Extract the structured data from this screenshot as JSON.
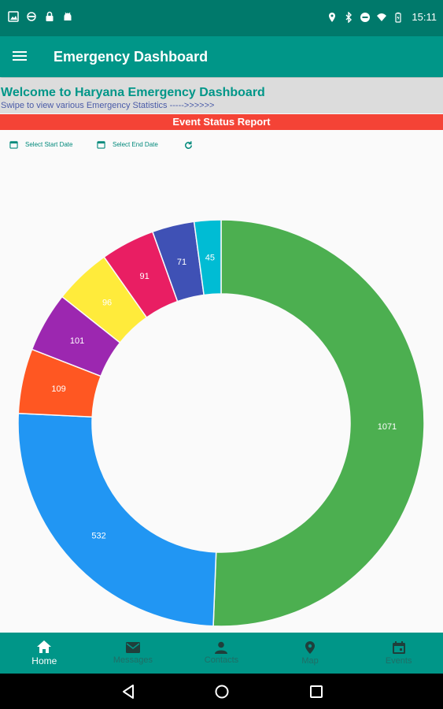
{
  "status_bar": {
    "time": "15:11",
    "left_icons": [
      "image-icon",
      "sync-icon",
      "lock-icon",
      "android-icon"
    ],
    "right_icons": [
      "location-icon",
      "bluetooth-icon",
      "dnd-icon",
      "wifi-icon",
      "battery-icon"
    ]
  },
  "app_bar": {
    "title": "Emergency Dashboard",
    "menu_icon": "menu-icon"
  },
  "welcome": {
    "title": "Welcome to Haryana Emergency Dashboard",
    "subtitle": "Swipe to view various Emergency Statistics ----->>>>>>"
  },
  "report_title": "Event Status Report",
  "filters": {
    "start_date_label": "Select Start Date",
    "end_date_label": "Select End Date",
    "refresh_icon": "refresh-icon"
  },
  "chart_data": {
    "type": "pie",
    "variant": "donut",
    "values": [
      1071,
      532,
      109,
      101,
      96,
      91,
      71,
      45
    ],
    "colors": [
      "#4CAF50",
      "#2196F3",
      "#FF5722",
      "#9C27B0",
      "#FFEB3B",
      "#E91E63",
      "#3F51B5",
      "#00BCD4"
    ],
    "labels_shown": [
      "1071",
      "532",
      "109",
      "101",
      "96",
      "91",
      "71",
      "45"
    ]
  },
  "bottom_nav": {
    "items": [
      {
        "label": "Home",
        "icon": "home-icon",
        "active": true
      },
      {
        "label": "Messages",
        "icon": "mail-icon",
        "active": false
      },
      {
        "label": "Contacts",
        "icon": "person-icon",
        "active": false
      },
      {
        "label": "Map",
        "icon": "map-pin-icon",
        "active": false
      },
      {
        "label": "Events",
        "icon": "calendar-icon",
        "active": false
      }
    ]
  },
  "system_nav": {
    "buttons": [
      "back-icon",
      "home-circle-icon",
      "recents-icon"
    ]
  },
  "colors": {
    "status_bar": "#00796B",
    "primary": "#009688",
    "accent_red": "#F44336",
    "welcome_bg": "#DCDCDC"
  }
}
